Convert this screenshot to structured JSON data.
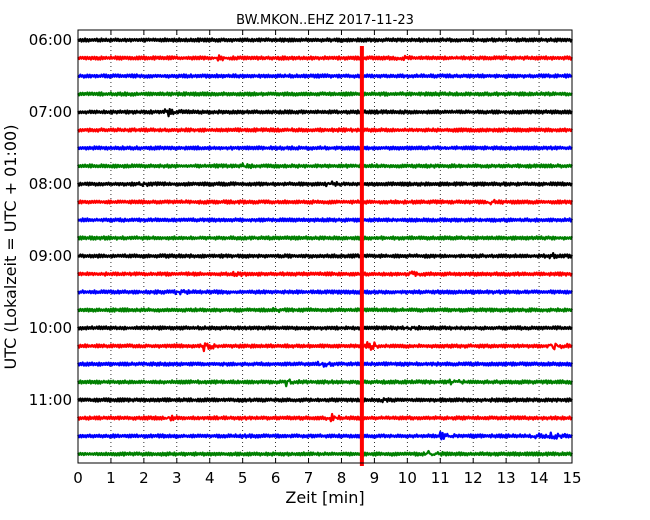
{
  "chart_data": {
    "type": "line",
    "title": "BW.MKON..EHZ 2017-11-23",
    "xlabel": "Zeit  [min]",
    "ylabel": "UTC (Lokalzeit = UTC + 01:00)",
    "xlim": [
      0,
      15
    ],
    "x_ticks": [
      "0",
      "1",
      "2",
      "3",
      "4",
      "5",
      "6",
      "7",
      "8",
      "9",
      "10",
      "11",
      "12",
      "13",
      "14",
      "15"
    ],
    "y_tick_labels": [
      "06:00",
      "07:00",
      "08:00",
      "09:00",
      "10:00",
      "11:00"
    ],
    "grid": true,
    "trace_interval_minutes": 15,
    "first_trace": "06:00",
    "trace_colors": [
      "#000000",
      "#ff0000",
      "#0000ff",
      "#008000"
    ],
    "traces": [
      {
        "time": "06:00",
        "events": []
      },
      {
        "time": "06:15",
        "events": [
          {
            "x": 4.2,
            "amp": 0.25
          },
          {
            "x": 9.7,
            "amp": 0.15
          }
        ]
      },
      {
        "time": "06:30",
        "events": []
      },
      {
        "time": "06:45",
        "events": []
      },
      {
        "time": "07:00",
        "events": [
          {
            "x": 2.7,
            "amp": 0.45
          }
        ]
      },
      {
        "time": "07:15",
        "events": []
      },
      {
        "time": "07:30",
        "events": []
      },
      {
        "time": "07:45",
        "events": [
          {
            "x": 5.0,
            "amp": 0.15
          }
        ]
      },
      {
        "time": "08:00",
        "events": [
          {
            "x": 1.9,
            "amp": 0.1
          },
          {
            "x": 7.6,
            "amp": 0.2
          }
        ]
      },
      {
        "time": "08:15",
        "events": [
          {
            "x": 12.5,
            "amp": 0.15
          }
        ]
      },
      {
        "time": "08:30",
        "events": []
      },
      {
        "time": "08:45",
        "events": []
      },
      {
        "time": "09:00",
        "events": [
          {
            "x": 14.4,
            "amp": 0.2
          }
        ]
      },
      {
        "time": "09:15",
        "events": [
          {
            "x": 4.7,
            "amp": 0.15
          },
          {
            "x": 10.1,
            "amp": 0.15
          }
        ]
      },
      {
        "time": "09:30",
        "events": [
          {
            "x": 3.0,
            "amp": 0.15
          }
        ]
      },
      {
        "time": "09:45",
        "events": [
          {
            "x": 5.9,
            "amp": 0.1
          }
        ]
      },
      {
        "time": "10:00",
        "events": [
          {
            "x": 10.0,
            "amp": 0.15
          }
        ]
      },
      {
        "time": "10:15",
        "events": [
          {
            "x": 3.8,
            "amp": 0.45
          },
          {
            "x": 8.75,
            "amp": 0.75
          },
          {
            "x": 14.4,
            "amp": 0.45
          }
        ]
      },
      {
        "time": "10:30",
        "events": [
          {
            "x": 7.3,
            "amp": 0.25
          }
        ]
      },
      {
        "time": "10:45",
        "events": [
          {
            "x": 6.3,
            "amp": 0.3
          },
          {
            "x": 11.3,
            "amp": 0.3
          }
        ]
      },
      {
        "time": "11:00",
        "events": [
          {
            "x": 9.2,
            "amp": 0.1
          }
        ]
      },
      {
        "time": "11:15",
        "events": [
          {
            "x": 2.7,
            "amp": 0.2
          },
          {
            "x": 7.6,
            "amp": 0.45
          }
        ]
      },
      {
        "time": "11:30",
        "events": [
          {
            "x": 11.0,
            "amp": 0.3
          },
          {
            "x": 13.8,
            "amp": 0.3
          },
          {
            "x": 14.3,
            "amp": 0.4
          }
        ]
      },
      {
        "time": "11:45",
        "events": [
          {
            "x": 10.6,
            "amp": 0.35
          }
        ]
      }
    ],
    "vertical_event": {
      "x": 8.62,
      "from": "06:15",
      "to": "11:45",
      "color": "#ff0000"
    }
  }
}
